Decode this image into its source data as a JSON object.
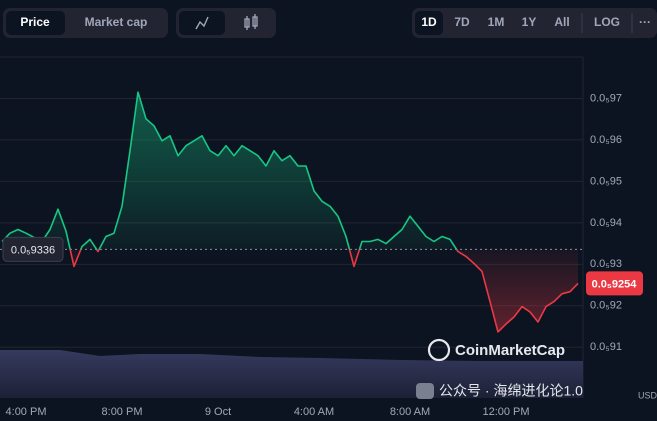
{
  "toolbar": {
    "metric_tabs": [
      "Price",
      "Market cap"
    ],
    "range_tabs": [
      "1D",
      "7D",
      "1M",
      "1Y",
      "All"
    ],
    "log": "LOG",
    "more": "···"
  },
  "watermark": {
    "brand": "CoinMarketCap",
    "channel": "公众号 · 海绵进化论1.0",
    "unit": "USD"
  },
  "chart_data": {
    "type": "line",
    "categories": [
      null,
      null,
      null,
      "4:00 PM",
      null,
      null,
      null,
      null,
      null,
      null,
      null,
      null,
      null,
      null,
      null,
      "8:00 PM",
      null,
      null,
      null,
      null,
      null,
      null,
      null,
      null,
      null,
      null,
      null,
      "9 Oct",
      null,
      null,
      null,
      null,
      null,
      null,
      null,
      null,
      null,
      null,
      null,
      "4:00 AM",
      null,
      null,
      null,
      null,
      null,
      null,
      null,
      null,
      null,
      null,
      null,
      "8:00 AM",
      null,
      null,
      null,
      null,
      null,
      null,
      null,
      null,
      null,
      null,
      null,
      "12:00 PM",
      null,
      null,
      null,
      null,
      null,
      null,
      null,
      null,
      null
    ],
    "values": [
      9.355e-07,
      9.375e-07,
      9.384e-07,
      9.375e-07,
      9.365e-07,
      9.355e-07,
      9.384e-07,
      9.433e-07,
      9.38e-07,
      9.295e-07,
      9.343e-07,
      9.36e-07,
      9.331e-07,
      9.367e-07,
      9.375e-07,
      9.44e-07,
      9.574e-07,
      9.715e-07,
      9.651e-07,
      9.634e-07,
      9.598e-07,
      9.61e-07,
      9.562e-07,
      9.586e-07,
      9.598e-07,
      9.61e-07,
      9.574e-07,
      9.562e-07,
      9.586e-07,
      9.562e-07,
      9.586e-07,
      9.574e-07,
      9.562e-07,
      9.537e-07,
      9.574e-07,
      9.55e-07,
      9.562e-07,
      9.537e-07,
      9.537e-07,
      9.477e-07,
      9.452e-07,
      9.44e-07,
      9.416e-07,
      9.367e-07,
      9.295e-07,
      9.355e-07,
      9.355e-07,
      9.36e-07,
      9.35e-07,
      9.367e-07,
      9.384e-07,
      9.416e-07,
      9.392e-07,
      9.367e-07,
      9.355e-07,
      9.367e-07,
      9.36e-07,
      9.331e-07,
      9.319e-07,
      9.302e-07,
      9.283e-07,
      9.21e-07,
      9.137e-07,
      9.156e-07,
      9.173e-07,
      9.198e-07,
      9.185e-07,
      9.161e-07,
      9.198e-07,
      9.21e-07,
      9.229e-07,
      9.234e-07,
      9.254e-07
    ],
    "up_color": "#16c784",
    "down_color": "#ea3943",
    "reference": {
      "value": 9.336e-07,
      "label": "0.0₅9336"
    },
    "current": {
      "value": 9.254e-07,
      "label": "0.0₅9254"
    },
    "ylim": [
      8.98e-07,
      9.8e-07
    ],
    "yticks": [
      {
        "value": 9.1e-07,
        "label": "0.0₅91"
      },
      {
        "value": 9.2e-07,
        "label": "0.0₅92"
      },
      {
        "value": 9.3e-07,
        "label": "0.0₅93"
      },
      {
        "value": 9.4e-07,
        "label": "0.0₅94"
      },
      {
        "value": 9.5e-07,
        "label": "0.0₅95"
      },
      {
        "value": 9.6e-07,
        "label": "0.0₅96"
      },
      {
        "value": 9.7e-07,
        "label": "0.0₅97"
      }
    ],
    "grid": true
  }
}
